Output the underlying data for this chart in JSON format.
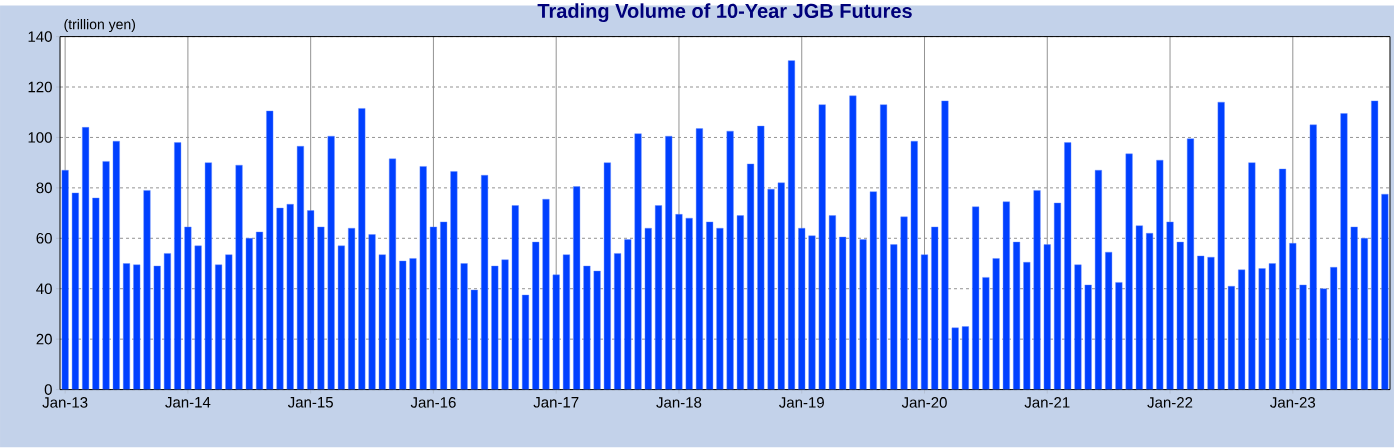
{
  "chart_data": {
    "type": "bar",
    "title": "Trading Volume of 10-Year JGB Futures",
    "ylabel": "(trillion yen)",
    "categories": [
      "Jan-13",
      null,
      null,
      null,
      null,
      null,
      null,
      null,
      null,
      null,
      null,
      null,
      "Jan-14",
      null,
      null,
      null,
      null,
      null,
      null,
      null,
      null,
      null,
      null,
      null,
      "Jan-15",
      null,
      null,
      null,
      null,
      null,
      null,
      null,
      null,
      null,
      null,
      null,
      "Jan-16",
      null,
      null,
      null,
      null,
      null,
      null,
      null,
      null,
      null,
      null,
      null,
      "Jan-17",
      null,
      null,
      null,
      null,
      null,
      null,
      null,
      null,
      null,
      null,
      null,
      "Jan-18",
      null,
      null,
      null,
      null,
      null,
      null,
      null,
      null,
      null,
      null,
      null,
      "Jan-19",
      null,
      null,
      null,
      null,
      null,
      null,
      null,
      null,
      null,
      null,
      null,
      "Jan-20",
      null,
      null,
      null,
      null,
      null,
      null,
      null,
      null,
      null,
      null,
      null,
      "Jan-21",
      null,
      null,
      null,
      null,
      null,
      null,
      null,
      null,
      null,
      null,
      null,
      "Jan-22",
      null,
      null,
      null,
      null,
      null,
      null,
      null,
      null,
      null,
      null,
      null,
      "Jan-23",
      null,
      null,
      null,
      null,
      null,
      null,
      null,
      null,
      null
    ],
    "values": [
      87,
      78,
      104,
      76,
      90.5,
      98.5,
      50,
      49.5,
      79,
      49,
      54,
      98,
      64.5,
      57,
      90,
      49.5,
      53.5,
      89,
      60,
      62.5,
      110.5,
      72,
      73.5,
      96.5,
      71,
      64.5,
      100.5,
      57,
      64,
      111.5,
      61.5,
      53.5,
      91.5,
      51,
      52,
      88.5,
      64.5,
      66.5,
      86.5,
      50,
      39.5,
      85,
      49,
      51.5,
      73,
      37.5,
      58.5,
      75.5,
      45.5,
      53.5,
      80.5,
      49,
      47,
      90,
      54,
      59.5,
      101.5,
      64,
      73,
      100.5,
      69.5,
      68,
      103.5,
      66.5,
      64,
      102.5,
      69,
      89.5,
      104.5,
      79.5,
      82,
      130.5,
      64,
      61,
      113,
      69,
      60.5,
      116.5,
      59.5,
      78.5,
      113,
      57.5,
      68.5,
      98.5,
      53.5,
      64.5,
      114.5,
      24.5,
      25,
      72.5,
      44.5,
      52,
      74.5,
      58.5,
      50.5,
      79,
      57.5,
      74,
      98,
      49.5,
      41.5,
      87,
      54.5,
      42.5,
      93.5,
      65,
      62,
      91,
      66.5,
      58.5,
      99.5,
      53,
      52.5,
      114,
      41,
      47.5,
      90,
      48,
      50,
      87.5,
      58,
      41.5,
      105,
      40,
      48.5,
      109.5,
      64.5,
      60,
      114.5,
      77.5
    ],
    "color": "#0040ff",
    "ylim": [
      0,
      140
    ],
    "yticks": [
      0,
      20,
      40,
      60,
      80,
      100,
      120,
      140
    ],
    "grid": true
  }
}
